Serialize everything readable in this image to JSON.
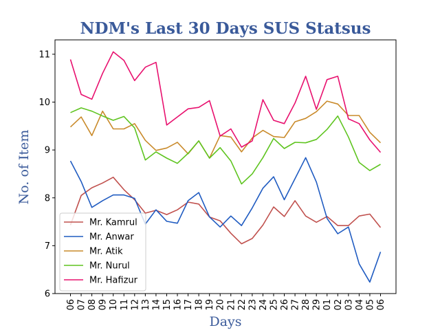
{
  "chart_data": {
    "type": "line",
    "title": "NDM's Last 30 Days SUS Statsus",
    "xlabel": "Days",
    "ylabel": "No. of Item",
    "categories": [
      "06",
      "07",
      "08",
      "09",
      "10",
      "11",
      "12",
      "13",
      "14",
      "15",
      "16",
      "17",
      "18",
      "19",
      "20",
      "21",
      "22",
      "23",
      "24",
      "25",
      "26",
      "27",
      "28",
      "29",
      "01",
      "02",
      "03",
      "04",
      "05",
      "06"
    ],
    "ylim": [
      6,
      11.3
    ],
    "yticks": [
      6,
      7,
      8,
      9,
      10,
      11
    ],
    "grid": false,
    "legend_position": "lower-left",
    "label_color": "#3a5a9a",
    "series": [
      {
        "name": "Mr. Kamrul",
        "color": "#c0504d",
        "values": [
          7.43,
          8.05,
          8.21,
          8.31,
          8.43,
          8.17,
          7.96,
          7.68,
          7.74,
          7.65,
          7.75,
          7.91,
          7.87,
          7.6,
          7.52,
          7.26,
          7.04,
          7.15,
          7.43,
          7.81,
          7.61,
          7.94,
          7.62,
          7.49,
          7.61,
          7.42,
          7.42,
          7.62,
          7.66,
          7.38
        ]
      },
      {
        "name": "Mr. Anwar",
        "color": "#1f5bc1",
        "values": [
          8.77,
          8.34,
          7.8,
          7.94,
          8.06,
          8.06,
          7.99,
          7.45,
          7.75,
          7.51,
          7.47,
          7.94,
          8.11,
          7.6,
          7.39,
          7.62,
          7.42,
          7.79,
          8.2,
          8.44,
          7.96,
          8.4,
          8.84,
          8.33,
          7.57,
          7.25,
          7.39,
          6.62,
          6.24,
          6.87
        ]
      },
      {
        "name": "Mr. Atik",
        "color": "#c98a2a",
        "values": [
          9.48,
          9.69,
          9.3,
          9.81,
          9.44,
          9.44,
          9.55,
          9.2,
          8.99,
          9.04,
          9.16,
          8.92,
          9.19,
          8.83,
          9.3,
          9.27,
          8.96,
          9.25,
          9.41,
          9.28,
          9.26,
          9.59,
          9.66,
          9.8,
          10.02,
          9.96,
          9.72,
          9.72,
          9.37,
          9.15
        ]
      },
      {
        "name": "Mr. Nurul",
        "color": "#5ec41f",
        "values": [
          9.78,
          9.88,
          9.81,
          9.71,
          9.62,
          9.7,
          9.46,
          8.79,
          8.96,
          8.83,
          8.72,
          8.93,
          9.19,
          8.83,
          9.05,
          8.77,
          8.29,
          8.5,
          8.84,
          9.24,
          9.03,
          9.16,
          9.15,
          9.22,
          9.43,
          9.71,
          9.27,
          8.74,
          8.57,
          8.7
        ]
      },
      {
        "name": "Mr. Hafizur",
        "color": "#e8106e",
        "values": [
          10.89,
          10.16,
          10.06,
          10.6,
          11.05,
          10.87,
          10.45,
          10.73,
          10.83,
          9.52,
          9.69,
          9.86,
          9.89,
          10.03,
          9.29,
          9.44,
          9.06,
          9.19,
          10.05,
          9.62,
          9.55,
          9.98,
          10.54,
          9.85,
          10.47,
          10.54,
          9.65,
          9.55,
          9.21,
          8.95
        ]
      }
    ]
  }
}
